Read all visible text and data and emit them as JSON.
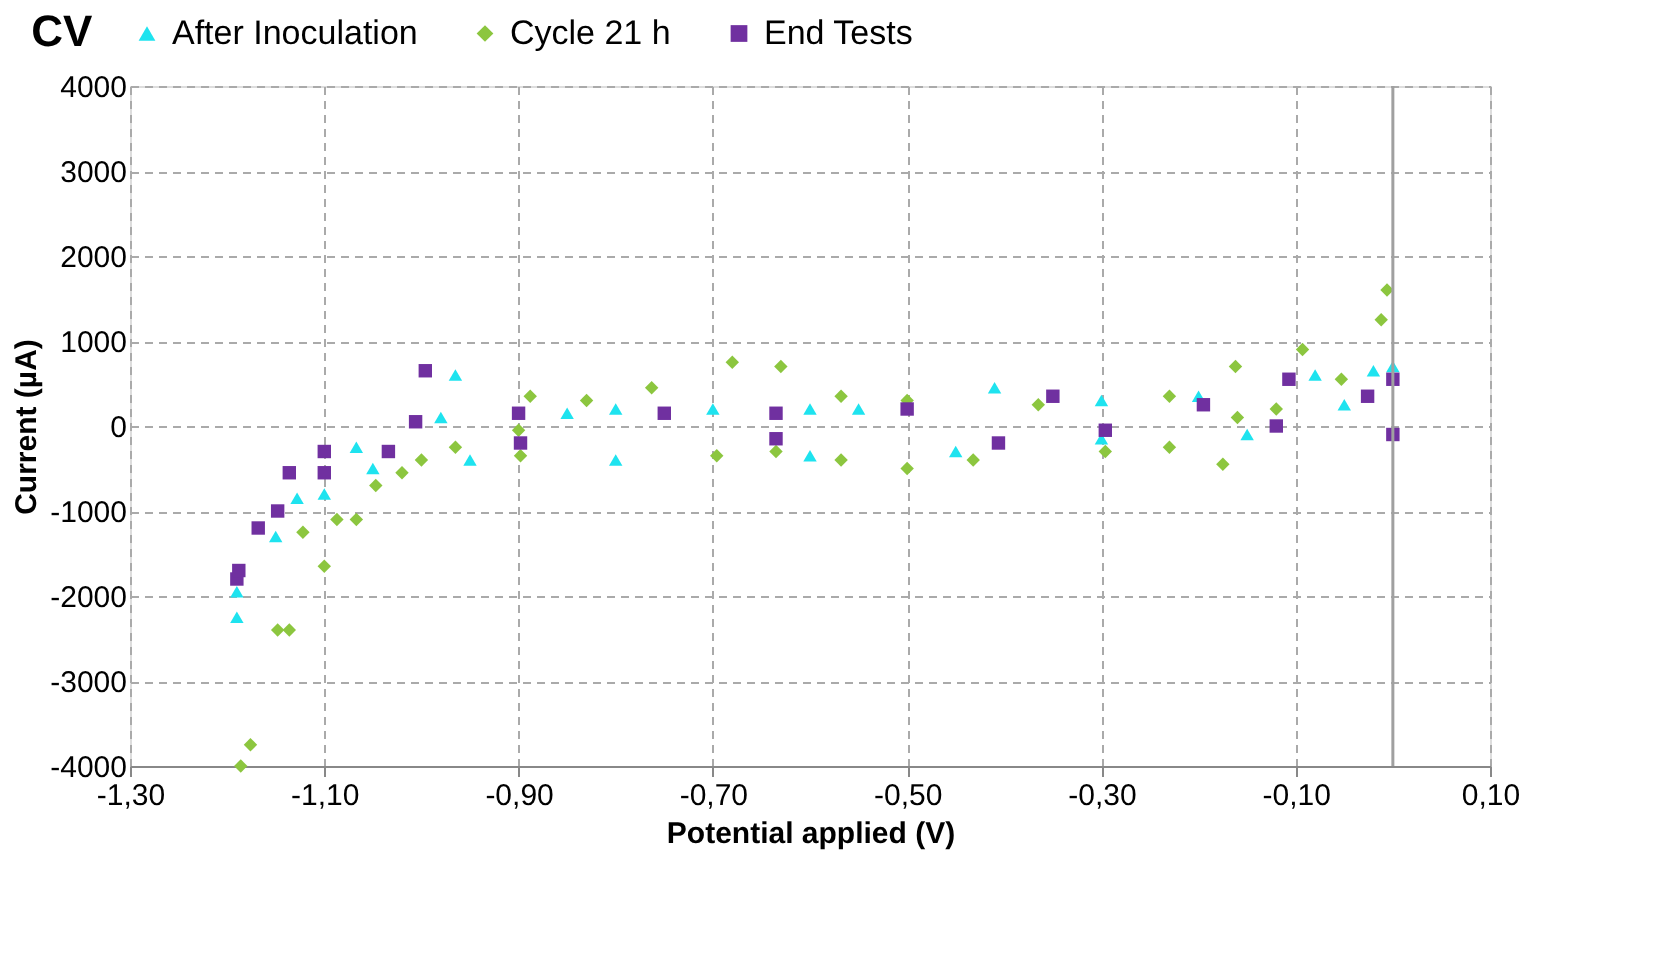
{
  "chart_data": {
    "type": "scatter",
    "title": "CV",
    "xlabel": "Potential applied (V)",
    "ylabel": "Current (µA)",
    "xlim": [
      -1.3,
      0.1
    ],
    "xticks": [
      {
        "value": -1.3,
        "label": "-1,30"
      },
      {
        "value": -1.1,
        "label": "-1,10"
      },
      {
        "value": -0.9,
        "label": "-0,90"
      },
      {
        "value": -0.7,
        "label": "-0,70"
      },
      {
        "value": -0.5,
        "label": "-0,50"
      },
      {
        "value": -0.3,
        "label": "-0,30"
      },
      {
        "value": -0.1,
        "label": "-0,10"
      },
      {
        "value": 0.1,
        "label": "0,10"
      }
    ],
    "ylim": [
      -4000,
      4000
    ],
    "yticks": [
      -4000,
      -3000,
      -2000,
      -1000,
      0,
      1000,
      2000,
      3000,
      4000
    ],
    "grid": true,
    "legend": "top",
    "ref_lines": [
      {
        "axis": "x",
        "value": 0,
        "color": "#a0a0a0"
      }
    ],
    "series": [
      {
        "name": "After Inoculation",
        "color": "#1ee3ef",
        "marker": "triangle",
        "x": [
          -1.19,
          -1.19,
          -1.128,
          -1.067,
          -0.98,
          -0.85,
          -0.8,
          -0.7,
          -0.6,
          -0.55,
          -0.41,
          -0.3,
          -0.2,
          -0.08,
          -0.02,
          0.0,
          -0.05,
          -0.15,
          -0.3,
          -0.45,
          -0.6,
          -0.8,
          -0.95,
          -1.05,
          -1.1,
          -1.15,
          -0.965
        ],
        "values": [
          -2250,
          -1950,
          -850,
          -250,
          100,
          150,
          200,
          200,
          200,
          200,
          450,
          300,
          350,
          600,
          650,
          700,
          250,
          -100,
          -150,
          -300,
          -350,
          -400,
          -400,
          -500,
          -800,
          -1300,
          600
        ]
      },
      {
        "name": "Cycle 21 h",
        "color": "#8cc63f",
        "marker": "diamond",
        "x": [
          -1.176,
          -1.136,
          -1.1,
          -1.067,
          -1.02,
          -0.965,
          -0.9,
          -0.83,
          -0.763,
          -0.68,
          -0.63,
          -0.568,
          -0.5,
          -0.365,
          -0.23,
          -0.162,
          -0.093,
          -0.006,
          -0.012,
          -0.053,
          -0.12,
          -0.16,
          -0.23,
          -0.296,
          -0.432,
          -0.5,
          -0.568,
          -0.635,
          -0.696,
          -0.898,
          -1.0,
          -1.047,
          -1.087,
          -1.122,
          -1.148,
          -1.186,
          -0.175,
          -0.888
        ],
        "values": [
          -3750,
          -2400,
          -1650,
          -1100,
          -550,
          -250,
          -50,
          300,
          450,
          750,
          700,
          350,
          300,
          250,
          350,
          700,
          900,
          1600,
          1250,
          550,
          200,
          100,
          -250,
          -300,
          -400,
          -500,
          -400,
          -300,
          -350,
          -350,
          -400,
          -700,
          -1100,
          -1250,
          -2400,
          -4000,
          -450,
          350
        ]
      },
      {
        "name": "End Tests",
        "color": "#7030a0",
        "marker": "square",
        "x": [
          -1.19,
          -1.168,
          -1.136,
          -1.1,
          -1.006,
          -0.9,
          -0.75,
          -0.635,
          -0.5,
          -0.35,
          -0.195,
          -0.107,
          0.0,
          -0.026,
          -0.12,
          -0.296,
          -0.406,
          -0.635,
          -0.898,
          -1.034,
          -1.1,
          -1.148,
          -1.188,
          -0.996,
          0.0
        ],
        "values": [
          -1800,
          -1200,
          -550,
          -300,
          50,
          150,
          150,
          150,
          200,
          350,
          250,
          550,
          550,
          350,
          0,
          -50,
          -200,
          -150,
          -200,
          -300,
          -550,
          -1000,
          -1700,
          650,
          -100
        ]
      }
    ]
  }
}
